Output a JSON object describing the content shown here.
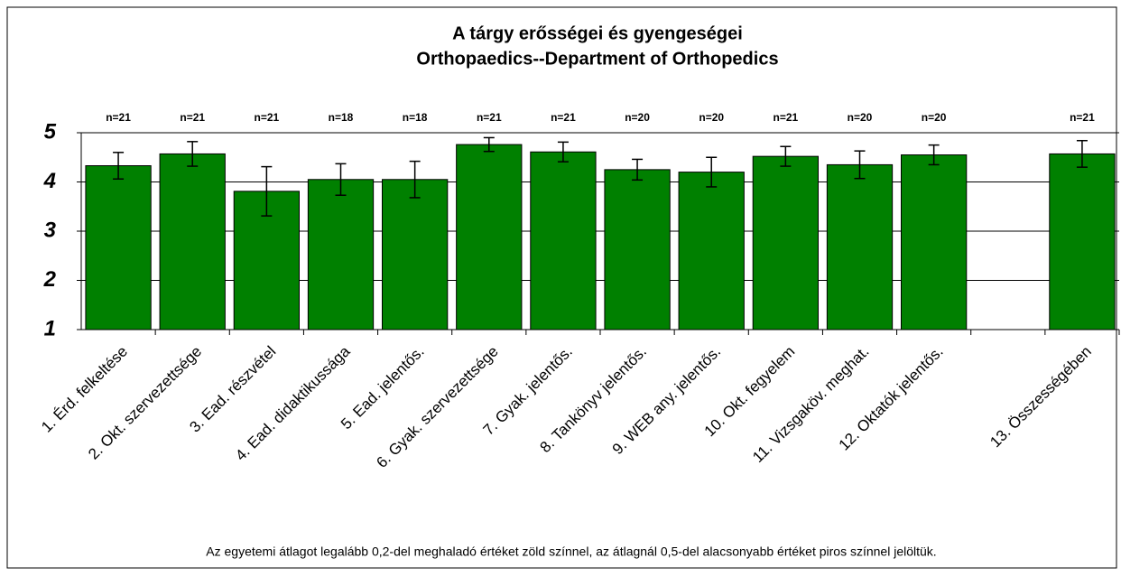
{
  "chart_data": {
    "type": "bar",
    "title": "A tárgy erősségei és gyengeségei",
    "subtitle": "Orthopaedics--Department of Orthopedics",
    "categories": [
      "1. Érd. felkeltése",
      "2. Okt. szervezettsége",
      "3. Ead. részvétel",
      "4. Ead. didaktikussága",
      "5. Ead. jelentős.",
      "6. Gyak. szervezettsége",
      "7. Gyak. jelentős.",
      "8. Tankönyv jelentős.",
      "9. WEB any. jelentős.",
      "10. Okt. fegyelem",
      "11. Vizsgaköv. meghat.",
      "12. Oktatók jelentős.",
      null,
      "13. Összességében"
    ],
    "values": [
      4.33,
      4.57,
      3.81,
      4.05,
      4.05,
      4.76,
      4.61,
      4.25,
      4.2,
      4.52,
      4.35,
      4.55,
      null,
      4.57
    ],
    "errors": [
      0.27,
      0.25,
      0.5,
      0.32,
      0.37,
      0.14,
      0.2,
      0.21,
      0.3,
      0.2,
      0.28,
      0.2,
      null,
      0.27
    ],
    "annotations": [
      "n=21",
      "n=21",
      "n=21",
      "n=18",
      "n=18",
      "n=21",
      "n=21",
      "n=20",
      "n=20",
      "n=21",
      "n=20",
      "n=20",
      null,
      "n=21"
    ],
    "color": "#008000",
    "ylim": [
      1,
      5
    ],
    "yticks": [
      1,
      2,
      3,
      4,
      5
    ],
    "grid": true,
    "footnote": "Az egyetemi átlagot legalább 0,2-del meghaladó értéket zöld színnel, az átlagnál 0,5-del alacsonyabb értéket piros színnel jelöltük."
  }
}
